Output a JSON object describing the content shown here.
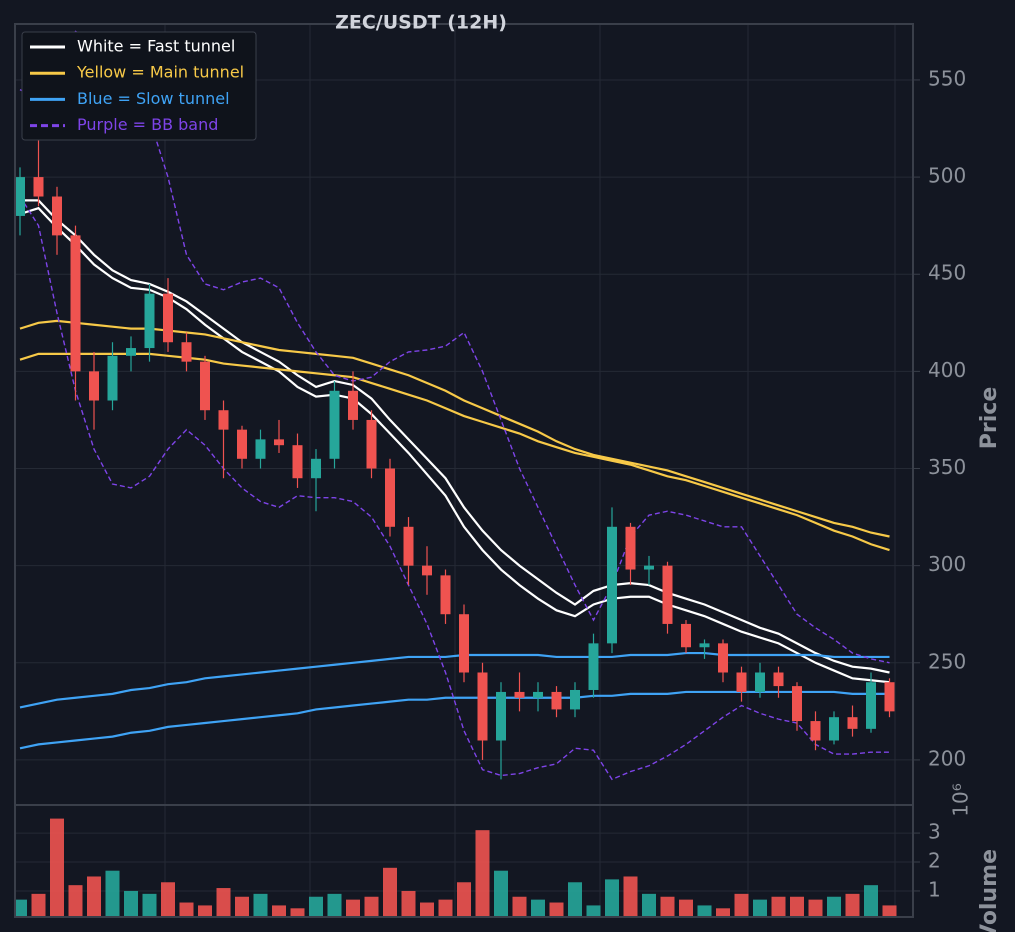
{
  "chart_data": [
    {
      "type": "candlestick",
      "title": "ZEC/USDT (12H)",
      "ylabel": "Price",
      "ylim": [
        176.8,
        578.8
      ],
      "yticks": [
        200,
        250,
        300,
        350,
        400,
        450,
        500,
        550
      ],
      "grid": true,
      "up_color": "#26a69a",
      "down_color": "#ef5350",
      "legend": "upper left",
      "open": [
        480,
        500,
        490,
        470,
        400,
        385,
        408,
        412,
        440,
        415,
        405,
        380,
        370,
        355,
        365,
        362,
        345,
        355,
        390,
        375,
        350,
        320,
        300,
        295,
        275,
        245,
        210,
        235,
        232,
        235,
        226,
        236,
        260,
        320,
        298,
        300,
        270,
        258,
        260,
        245,
        235,
        245,
        238,
        220,
        210,
        222,
        216,
        240
      ],
      "high": [
        505,
        525,
        495,
        475,
        410,
        415,
        418,
        445,
        448,
        420,
        408,
        385,
        372,
        370,
        375,
        368,
        360,
        395,
        400,
        380,
        355,
        325,
        310,
        298,
        280,
        250,
        240,
        245,
        240,
        238,
        240,
        265,
        330,
        322,
        305,
        302,
        272,
        262,
        262,
        248,
        250,
        248,
        240,
        225,
        225,
        228,
        245,
        242
      ],
      "low": [
        470,
        485,
        460,
        385,
        370,
        380,
        400,
        405,
        410,
        400,
        375,
        345,
        350,
        350,
        358,
        340,
        328,
        350,
        370,
        345,
        315,
        290,
        285,
        270,
        240,
        200,
        190,
        225,
        225,
        222,
        222,
        232,
        255,
        290,
        290,
        265,
        255,
        252,
        240,
        230,
        232,
        232,
        215,
        205,
        208,
        212,
        214,
        222
      ],
      "close": [
        500,
        490,
        470,
        400,
        385,
        408,
        412,
        440,
        415,
        405,
        380,
        370,
        355,
        365,
        362,
        345,
        355,
        390,
        375,
        350,
        320,
        300,
        295,
        275,
        245,
        210,
        235,
        232,
        235,
        226,
        236,
        260,
        320,
        298,
        300,
        270,
        258,
        260,
        245,
        235,
        245,
        238,
        220,
        210,
        222,
        216,
        240,
        225
      ],
      "lines": [
        {
          "name": "White = Fast tunnel",
          "color": "#ffffff",
          "dashed": false,
          "upper": [
            488,
            488,
            478,
            470,
            460,
            452,
            447,
            445,
            441,
            436,
            429,
            422,
            415,
            410,
            405,
            398,
            392,
            395,
            393,
            386,
            375,
            365,
            355,
            345,
            330,
            318,
            308,
            300,
            293,
            286,
            280,
            287,
            290,
            291,
            290,
            286,
            283,
            280,
            276,
            272,
            268,
            265,
            260,
            255,
            251,
            248,
            247,
            245
          ],
          "lower": [
            481,
            484,
            474,
            465,
            455,
            448,
            443,
            442,
            438,
            432,
            424,
            417,
            410,
            405,
            400,
            392,
            387,
            388,
            386,
            378,
            368,
            358,
            347,
            336,
            320,
            308,
            298,
            290,
            283,
            277,
            274,
            280,
            283,
            284,
            284,
            280,
            277,
            274,
            270,
            266,
            263,
            260,
            255,
            250,
            246,
            242,
            241,
            240
          ]
        },
        {
          "name": "Yellow = Main tunnel",
          "color": "#f7c948",
          "dashed": false,
          "upper": [
            422,
            425,
            426,
            425,
            424,
            423,
            422,
            422,
            421,
            420,
            419,
            417,
            415,
            413,
            411,
            410,
            409,
            408,
            407,
            404,
            401,
            398,
            394,
            390,
            385,
            381,
            377,
            373,
            369,
            364,
            360,
            357,
            355,
            353,
            351,
            349,
            346,
            343,
            340,
            337,
            334,
            331,
            328,
            325,
            322,
            320,
            317,
            315
          ],
          "lower": [
            406,
            409,
            409,
            409,
            409,
            409,
            409,
            409,
            408,
            407,
            406,
            404,
            403,
            402,
            401,
            400,
            399,
            398,
            397,
            394,
            391,
            388,
            385,
            381,
            377,
            374,
            371,
            368,
            364,
            361,
            358,
            356,
            354,
            352,
            349,
            346,
            344,
            341,
            338,
            335,
            332,
            329,
            326,
            322,
            318,
            315,
            311,
            308
          ]
        },
        {
          "name": "Blue = Slow tunnel",
          "color": "#3fa3f5",
          "dashed": false,
          "upper": [
            227,
            229,
            231,
            232,
            233,
            234,
            236,
            237,
            239,
            240,
            242,
            243,
            244,
            245,
            246,
            247,
            248,
            249,
            250,
            251,
            252,
            253,
            253,
            253,
            254,
            254,
            254,
            254,
            254,
            253,
            253,
            253,
            253,
            254,
            254,
            254,
            255,
            255,
            254,
            254,
            254,
            254,
            254,
            254,
            253,
            253,
            253,
            253
          ],
          "lower": [
            206,
            208,
            209,
            210,
            211,
            212,
            214,
            215,
            217,
            218,
            219,
            220,
            221,
            222,
            223,
            224,
            226,
            227,
            228,
            229,
            230,
            231,
            231,
            232,
            232,
            232,
            232,
            232,
            232,
            232,
            232,
            233,
            233,
            234,
            234,
            234,
            235,
            235,
            235,
            235,
            235,
            235,
            235,
            235,
            235,
            234,
            234,
            234
          ]
        },
        {
          "name": "Purple = BB band",
          "color": "#7e44e8",
          "dashed": true,
          "upper": [
            545,
            540,
            560,
            575,
            570,
            560,
            550,
            530,
            500,
            460,
            445,
            442,
            446,
            448,
            443,
            425,
            410,
            398,
            395,
            397,
            405,
            410,
            411,
            413,
            420,
            400,
            375,
            350,
            330,
            310,
            290,
            272,
            290,
            315,
            326,
            328,
            326,
            323,
            320,
            320,
            305,
            290,
            275,
            268,
            262,
            255,
            252,
            250
          ],
          "lower": [
            490,
            475,
            430,
            390,
            360,
            342,
            340,
            346,
            360,
            370,
            362,
            350,
            340,
            333,
            330,
            336,
            335,
            335,
            333,
            325,
            310,
            290,
            270,
            245,
            215,
            195,
            192,
            193,
            196,
            198,
            206,
            205,
            190,
            194,
            197,
            202,
            208,
            215,
            222,
            228,
            224,
            221,
            219,
            208,
            203,
            203,
            204,
            204
          ]
        }
      ]
    },
    {
      "type": "bar",
      "ylabel": "Volume",
      "scale_label": "10⁶",
      "ylim": [
        0.1,
        3.97
      ],
      "yticks": [
        1,
        2,
        3
      ],
      "values": [
        0.7,
        0.9,
        3.5,
        1.2,
        1.5,
        1.7,
        1.0,
        0.9,
        1.3,
        0.6,
        0.5,
        1.1,
        0.8,
        0.9,
        0.5,
        0.4,
        0.8,
        0.9,
        0.7,
        0.8,
        1.8,
        1.0,
        0.6,
        0.7,
        1.3,
        3.1,
        1.7,
        0.8,
        0.7,
        0.6,
        1.3,
        0.5,
        1.4,
        1.5,
        0.9,
        0.8,
        0.7,
        0.5,
        0.4,
        0.9,
        0.7,
        0.8,
        0.8,
        0.7,
        0.8,
        0.9,
        1.2,
        0.5
      ]
    }
  ]
}
